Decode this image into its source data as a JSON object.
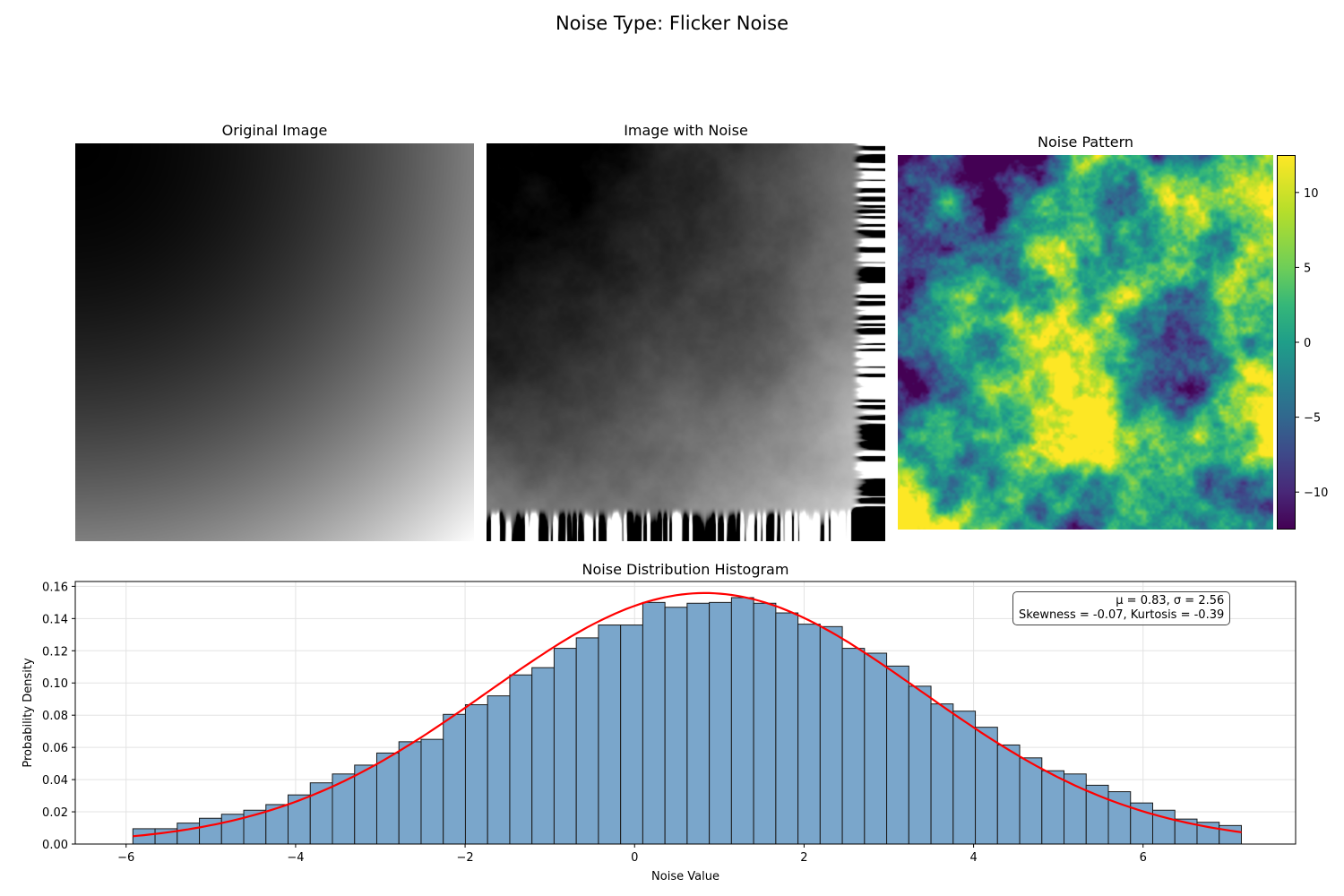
{
  "suptitle": "Noise Type: Flicker Noise",
  "panels": {
    "original_title": "Original Image",
    "noisy_title": "Image with Noise",
    "noise_title": "Noise Pattern"
  },
  "colorbar": {
    "colormap": "viridis",
    "range": [
      -12.5,
      12.5
    ],
    "ticks": [
      10,
      5,
      0,
      -5,
      -10
    ],
    "tick_labels": [
      "10",
      "5",
      "0",
      "−5",
      "−10"
    ]
  },
  "stats": {
    "line1": "μ = 0.83, σ = 2.56",
    "line2": "Skewness = -0.07, Kurtosis = -0.39"
  },
  "colors": {
    "bar_fill": "#7aa6cb",
    "bar_edge": "#1a1a1a",
    "fit_line": "#ff0000"
  },
  "chart_data": {
    "type": "bar",
    "title": "Noise Distribution Histogram",
    "xlabel": "Noise Value",
    "ylabel": "Probability Density",
    "xlim": [
      -6.6,
      7.8
    ],
    "ylim": [
      0,
      0.163
    ],
    "xticks": [
      -6,
      -4,
      -2,
      0,
      2,
      4,
      6
    ],
    "xtick_labels": [
      "−6",
      "−4",
      "−2",
      "0",
      "2",
      "4",
      "6"
    ],
    "yticks": [
      0,
      0.02,
      0.04,
      0.06,
      0.08,
      0.1,
      0.12,
      0.14,
      0.16
    ],
    "ytick_labels": [
      "0.00",
      "0.02",
      "0.04",
      "0.06",
      "0.08",
      "0.10",
      "0.12",
      "0.14",
      "0.16"
    ],
    "grid": true,
    "bin_start": -5.92,
    "bin_width": 0.2616,
    "values": [
      0.0095,
      0.0095,
      0.013,
      0.016,
      0.0185,
      0.021,
      0.0245,
      0.0305,
      0.038,
      0.0435,
      0.049,
      0.0565,
      0.0635,
      0.065,
      0.0805,
      0.0865,
      0.092,
      0.105,
      0.1095,
      0.1215,
      0.128,
      0.136,
      0.136,
      0.15,
      0.147,
      0.1495,
      0.15,
      0.153,
      0.1495,
      0.1435,
      0.1365,
      0.135,
      0.1215,
      0.1185,
      0.1105,
      0.098,
      0.087,
      0.0825,
      0.0725,
      0.0615,
      0.0535,
      0.0455,
      0.0435,
      0.0365,
      0.0325,
      0.0255,
      0.021,
      0.0155,
      0.0135,
      0.0115
    ],
    "fit": {
      "type": "normal-pdf",
      "mu": 0.83,
      "sigma": 2.56,
      "x_range": [
        -5.92,
        7.16
      ]
    }
  }
}
